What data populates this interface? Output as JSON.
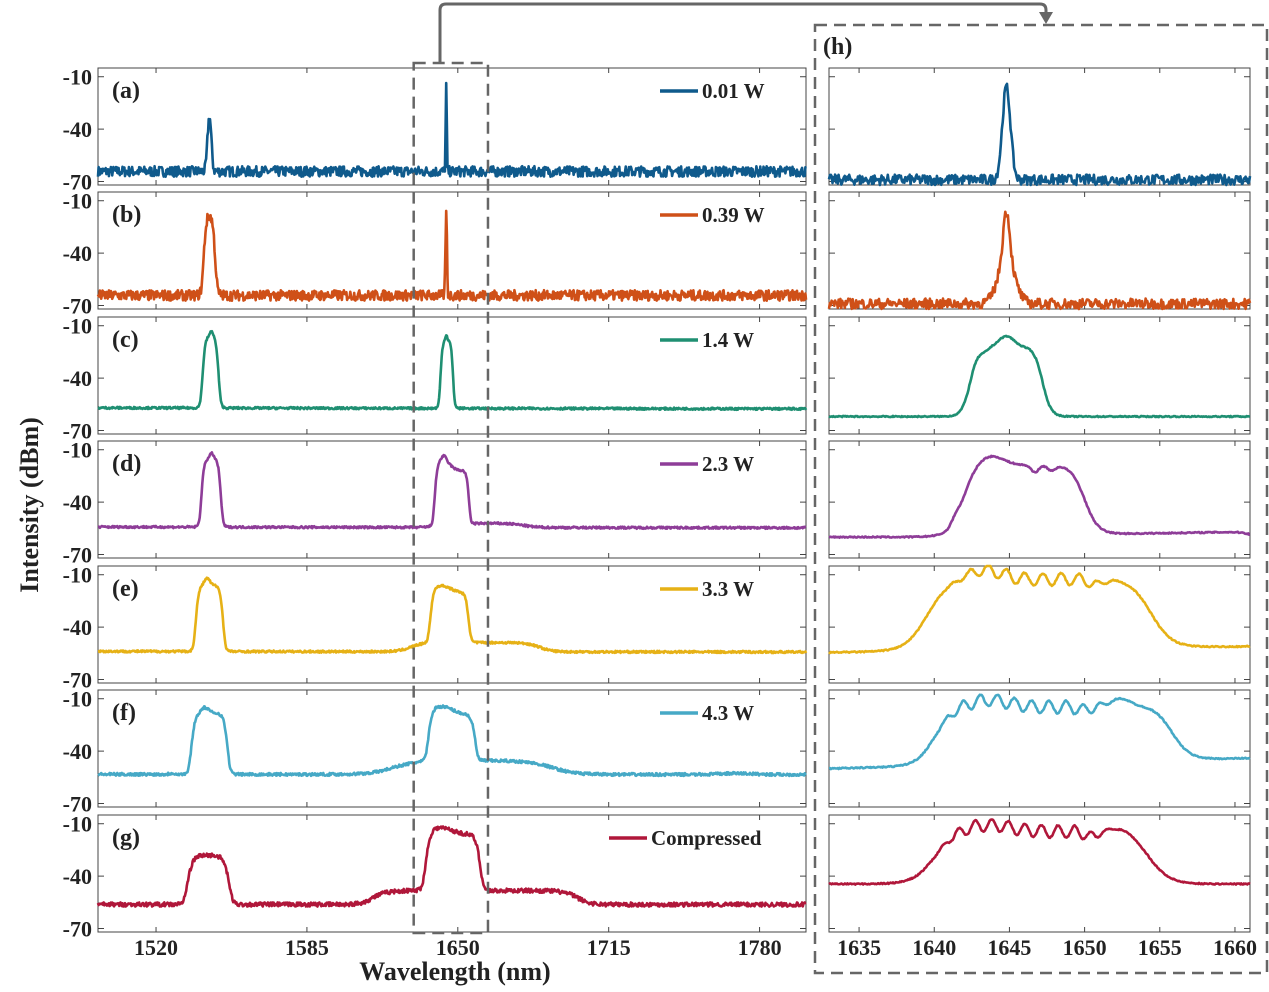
{
  "figure": {
    "ylabel": "Intensity (dBm)",
    "xlabel": "Wavelength (nm)",
    "left_ticks": [
      "1520",
      "1585",
      "1650",
      "1715",
      "1780"
    ],
    "right_ticks": [
      "1635",
      "1640",
      "1645",
      "1650",
      "1655",
      "1660"
    ],
    "y_ticks": [
      "-10",
      "-40",
      "-70"
    ]
  },
  "chart_data": [
    {
      "panel": "(a)",
      "type": "line",
      "legend": "0.01 W",
      "color": "#0f5a8c",
      "noise": 3
    },
    {
      "panel": "(b)",
      "type": "line",
      "legend": "0.39 W",
      "color": "#cf5018",
      "noise": 3
    },
    {
      "panel": "(c)",
      "type": "line",
      "legend": "1.4 W",
      "color": "#1f8f72",
      "noise": 0.6
    },
    {
      "panel": "(d)",
      "type": "line",
      "legend": "2.3 W",
      "color": "#8e3d98",
      "noise": 0.6
    },
    {
      "panel": "(e)",
      "type": "line",
      "legend": "3.3 W",
      "color": "#e6b116",
      "noise": 0.6
    },
    {
      "panel": "(f)",
      "type": "line",
      "legend": "4.3 W",
      "color": "#46a9c6",
      "noise": 0.8
    },
    {
      "panel": "(g)",
      "type": "line",
      "legend": "Compressed",
      "color": "#b0173a",
      "noise": 1.2
    },
    {
      "panel": "(h)",
      "type": "line",
      "description": "zoom 1633-1661 nm of panels (a)-(g)",
      "xlim": [
        1633,
        1661
      ]
    }
  ],
  "axes": {
    "left_xlim": [
      1495,
      1800
    ],
    "right_xlim": [
      1633,
      1661
    ],
    "ylim": [
      -72,
      -5
    ]
  }
}
